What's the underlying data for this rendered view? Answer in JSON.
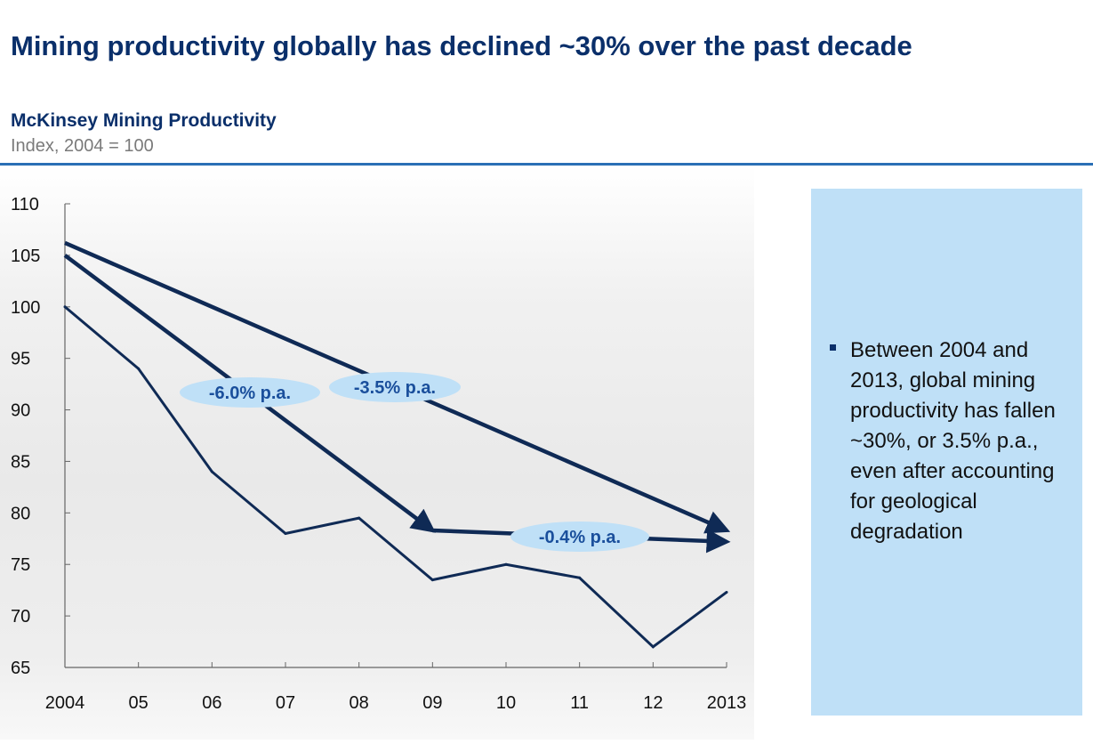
{
  "header": {
    "title": "Mining productivity globally has declined ~30% over the past decade",
    "subtitle": "McKinsey Mining Productivity",
    "unit": "Index, 2004 = 100"
  },
  "chart_data": {
    "type": "line",
    "title": "McKinsey Mining Productivity",
    "ylabel": "Index, 2004 = 100",
    "xlabel": "",
    "categories": [
      "2004",
      "05",
      "06",
      "07",
      "08",
      "09",
      "10",
      "11",
      "12",
      "2013"
    ],
    "ylim": [
      65,
      110
    ],
    "yticks": [
      110,
      105,
      100,
      95,
      90,
      85,
      80,
      75,
      70,
      65
    ],
    "grid": false,
    "series": [
      {
        "values": [
          100,
          94,
          84,
          78,
          79.5,
          73.5,
          75,
          73.7,
          67,
          72.3
        ]
      }
    ],
    "trend_arrows": [
      {
        "from": [
          "2004",
          106.2
        ],
        "to": [
          "2013",
          78.3
        ],
        "label": "-3.5% p.a."
      },
      {
        "from": [
          "2004",
          105
        ],
        "to": [
          "09",
          78.3
        ],
        "label": "-6.0% p.a."
      },
      {
        "from": [
          "09",
          78.3
        ],
        "to": [
          "2013",
          77.2
        ],
        "label": "-0.4% p.a."
      }
    ]
  },
  "callout": {
    "text": "Between 2004 and 2013, global mining productivity has fallen ~30%, or 3.5% p.a., even after accounting for geological degradation"
  },
  "colors": {
    "title": "#0a2f6a",
    "rule": "#2a6fb5",
    "line": "#0f2a55",
    "pill_fill": "#bfe0f7",
    "pill_text": "#1a4f9c",
    "callout_fill": "#bfe0f7"
  }
}
